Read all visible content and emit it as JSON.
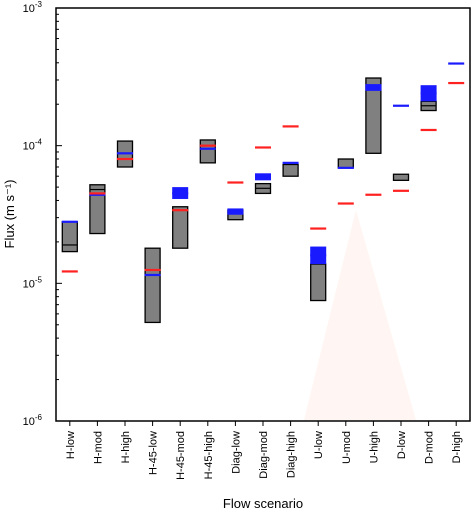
{
  "colors": {
    "box_fill": "#808080",
    "box_stroke": "#000000",
    "measured": "#1a1aff",
    "modelled": "#ff2020",
    "shade": "#fff5f2"
  },
  "chart_data": {
    "type": "box",
    "scale": "log",
    "xlabel": "Flow scenario",
    "ylabel": "Flux (m s⁻¹)",
    "ylim": [
      1e-06,
      0.001
    ],
    "yticks": [
      {
        "value": 0.001,
        "base": "10",
        "exp": "-3"
      },
      {
        "value": 0.0001,
        "base": "10",
        "exp": "-4"
      },
      {
        "value": 1e-05,
        "base": "10",
        "exp": "-5"
      },
      {
        "value": 1e-06,
        "base": "10",
        "exp": "-6"
      }
    ],
    "categories": [
      "H-low",
      "H-mod",
      "H-high",
      "H-45-low",
      "H-45-mod",
      "H-45-high",
      "Diag-low",
      "Diag-mod",
      "Diag-high",
      "U-low",
      "U-mod",
      "U-high",
      "D-low",
      "D-mod",
      "D-high"
    ],
    "boxes": [
      {
        "low": 1.7e-05,
        "high": 2.8e-05,
        "inner": [
          1.9e-05
        ]
      },
      {
        "low": 2.3e-05,
        "high": 5.2e-05,
        "inner": [
          4.8e-05
        ]
      },
      {
        "low": 7e-05,
        "high": 0.000108,
        "inner": [
          8e-05
        ]
      },
      {
        "low": 5.2e-06,
        "high": 1.8e-05,
        "inner": []
      },
      {
        "low": 1.8e-05,
        "high": 3.6e-05,
        "inner": []
      },
      {
        "low": 7.5e-05,
        "high": 0.00011,
        "inner": []
      },
      {
        "low": 2.9e-05,
        "high": 3.4e-05,
        "inner": []
      },
      {
        "low": 4.5e-05,
        "high": 5.3e-05,
        "inner": [
          4.9e-05
        ]
      },
      {
        "low": 6e-05,
        "high": 7.3e-05,
        "inner": []
      },
      {
        "low": 7.5e-06,
        "high": 1.38e-05,
        "inner": []
      },
      {
        "low": 6.9e-05,
        "high": 8e-05,
        "inner": []
      },
      {
        "low": 8.8e-05,
        "high": 0.00031,
        "inner": []
      },
      {
        "low": 5.6e-05,
        "high": 6.2e-05,
        "inner": []
      },
      {
        "low": 0.00018,
        "high": 0.00021,
        "inner": [
          0.000195
        ]
      },
      null
    ],
    "series": [
      {
        "role": "measured",
        "bars": [
          {
            "value": 2.8e-05
          },
          {
            "value": 4.4e-05
          },
          {
            "value": 8.8e-05
          },
          {
            "value": 1.15e-05
          },
          {
            "value": 4.5e-05,
            "band": [
              4.1e-05,
              5e-05
            ]
          },
          {
            "value": 9.5e-05
          },
          {
            "value": 3.3e-05,
            "band": [
              3.15e-05,
              3.5e-05
            ]
          },
          {
            "value": 5.9e-05,
            "band": [
              5.6e-05,
              6.3e-05
            ]
          },
          {
            "value": 7.5e-05
          },
          {
            "value": 1.6e-05,
            "band": [
              1.38e-05,
              1.85e-05
            ]
          },
          {
            "value": 6.9e-05
          },
          {
            "value": 0.000265,
            "band": [
              0.00025,
              0.00028
            ]
          },
          {
            "value": 0.000195
          },
          {
            "value": 0.00024,
            "band": [
              0.00021,
              0.000275
            ]
          },
          {
            "value": 0.000395
          }
        ]
      },
      {
        "role": "modelled",
        "bars": [
          {
            "value": 1.22e-05
          },
          {
            "value": 4.5e-05
          },
          {
            "value": 8e-05
          },
          {
            "value": 1.25e-05
          },
          {
            "value": 3.4e-05
          },
          {
            "value": 0.0001
          },
          {
            "value": 5.4e-05
          },
          {
            "value": 9.7e-05
          },
          {
            "value": 0.000138
          },
          {
            "value": 2.5e-05
          },
          {
            "value": 3.8e-05
          },
          {
            "value": 4.4e-05
          },
          {
            "value": 4.7e-05
          },
          {
            "value": 0.00013
          },
          {
            "value": 0.000285
          }
        ]
      }
    ]
  }
}
